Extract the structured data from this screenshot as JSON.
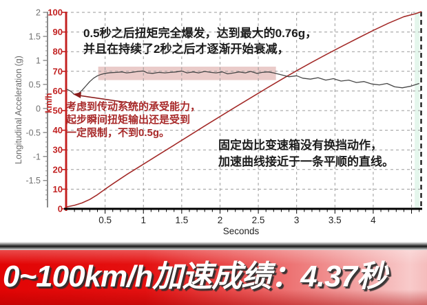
{
  "banner": {
    "text": "0~100km/h加速成绩：4.37秒"
  },
  "notes": {
    "top": {
      "line1": "0.5秒之后扭矩完全爆发，达到最大的0.76g，",
      "line2": "并且在持续了2秒之后才逐渐开始衰减，"
    },
    "torque": {
      "line1": "考虑到传动系统的承受能力，",
      "line2": "起步瞬间扭矩输出还是受到",
      "line3": "一定限制，不到0.5g。"
    },
    "gearbox": {
      "line1": "固定齿比变速箱没有换挡动作，",
      "line2": "加速曲线接近于一条平顺的直线。"
    }
  },
  "chart_data": {
    "type": "line",
    "title": "",
    "xlabel": "Seconds",
    "x_axis": {
      "label": "Seconds",
      "range": [
        0,
        4.63
      ],
      "ticks": [
        0.5,
        1,
        1.5,
        2,
        2.5,
        3,
        3.5,
        4
      ],
      "gridlines": [
        0.5,
        1,
        1.5,
        2,
        2.5,
        3,
        3.5,
        4,
        4.5
      ],
      "minor_tick_step": 0.1
    },
    "left_axis": {
      "label": "Longitudinal Acceleration (g)",
      "range": [
        -2.09,
        2.0
      ],
      "ticks": [
        2,
        1.5,
        1,
        0.5,
        0,
        -0.5,
        -1,
        -1.5
      ],
      "minor_tick_step": 0.1,
      "color": "#707070"
    },
    "right_axis": {
      "label": "km/h",
      "range": [
        0,
        100
      ],
      "ticks": [
        100,
        90,
        80,
        70,
        60,
        50,
        40,
        30,
        20,
        10,
        0
      ],
      "color": "#c22222"
    },
    "layout_hints": {
      "grid": "dashed-gray",
      "legend": "none",
      "end_marker_x": 4.6
    },
    "highlight_band": {
      "t_start": 0.41,
      "t_end": 2.73,
      "g_low": 0.59,
      "g_high": 0.87,
      "color": "rgba(195,105,100,0.35)"
    },
    "series": [
      {
        "name": "speed-kmh",
        "axis": "right",
        "color": "#a32a28",
        "width": 1.6,
        "points": [
          [
            0,
            1
          ],
          [
            0.1,
            1.8
          ],
          [
            0.2,
            3
          ],
          [
            0.3,
            4.8
          ],
          [
            0.4,
            7.2
          ],
          [
            0.5,
            10
          ],
          [
            0.6,
            12.7
          ],
          [
            0.7,
            15.3
          ],
          [
            0.8,
            17.9
          ],
          [
            0.9,
            20.3
          ],
          [
            1.0,
            22.7
          ],
          [
            1.2,
            27.6
          ],
          [
            1.4,
            32.4
          ],
          [
            1.6,
            37.3
          ],
          [
            1.8,
            42.2
          ],
          [
            2.0,
            47
          ],
          [
            2.2,
            51.8
          ],
          [
            2.4,
            56.5
          ],
          [
            2.6,
            61.2
          ],
          [
            2.8,
            65.8
          ],
          [
            3.0,
            70.3
          ],
          [
            3.2,
            74.6
          ],
          [
            3.4,
            78.8
          ],
          [
            3.6,
            82.9
          ],
          [
            3.8,
            86.9
          ],
          [
            4.0,
            90.8
          ],
          [
            4.2,
            94.5
          ],
          [
            4.4,
            97.8
          ],
          [
            4.55,
            99.3
          ],
          [
            4.63,
            100.4
          ]
        ]
      },
      {
        "name": "longitudinal-acceleration-g",
        "axis": "left",
        "color": "#454545",
        "width": 1.3,
        "points": [
          [
            0,
            0.4
          ],
          [
            0.05,
            0.36
          ],
          [
            0.1,
            0.29
          ],
          [
            0.15,
            0.31
          ],
          [
            0.2,
            0.38
          ],
          [
            0.25,
            0.47
          ],
          [
            0.3,
            0.56
          ],
          [
            0.35,
            0.63
          ],
          [
            0.4,
            0.68
          ],
          [
            0.45,
            0.71
          ],
          [
            0.5,
            0.73
          ],
          [
            0.57,
            0.745
          ],
          [
            0.65,
            0.75
          ],
          [
            0.72,
            0.76
          ],
          [
            0.78,
            0.74
          ],
          [
            0.85,
            0.75
          ],
          [
            0.93,
            0.77
          ],
          [
            1.0,
            0.78
          ],
          [
            1.05,
            0.74
          ],
          [
            1.12,
            0.73
          ],
          [
            1.2,
            0.75
          ],
          [
            1.28,
            0.74
          ],
          [
            1.35,
            0.75
          ],
          [
            1.43,
            0.76
          ],
          [
            1.5,
            0.78
          ],
          [
            1.57,
            0.74
          ],
          [
            1.65,
            0.76
          ],
          [
            1.72,
            0.74
          ],
          [
            1.8,
            0.77
          ],
          [
            1.88,
            0.75
          ],
          [
            1.95,
            0.74
          ],
          [
            2.03,
            0.76
          ],
          [
            2.1,
            0.72
          ],
          [
            2.18,
            0.74
          ],
          [
            2.25,
            0.76
          ],
          [
            2.33,
            0.74
          ],
          [
            2.4,
            0.77
          ],
          [
            2.48,
            0.73
          ],
          [
            2.55,
            0.75
          ],
          [
            2.63,
            0.76
          ],
          [
            2.7,
            0.74
          ],
          [
            2.8,
            0.7
          ],
          [
            2.9,
            0.66
          ],
          [
            3.0,
            0.68
          ],
          [
            3.08,
            0.63
          ],
          [
            3.18,
            0.61
          ],
          [
            3.28,
            0.64
          ],
          [
            3.38,
            0.59
          ],
          [
            3.48,
            0.62
          ],
          [
            3.58,
            0.57
          ],
          [
            3.68,
            0.59
          ],
          [
            3.78,
            0.54
          ],
          [
            3.88,
            0.56
          ],
          [
            3.98,
            0.51
          ],
          [
            4.08,
            0.49
          ],
          [
            4.18,
            0.52
          ],
          [
            4.28,
            0.45
          ],
          [
            4.38,
            0.43
          ],
          [
            4.48,
            0.46
          ],
          [
            4.6,
            0.52
          ]
        ]
      }
    ],
    "annotation_arrow": {
      "from_xy": [
        197,
        151
      ],
      "to_xy": [
        108,
        138
      ],
      "color": "#8b1b1b"
    }
  }
}
